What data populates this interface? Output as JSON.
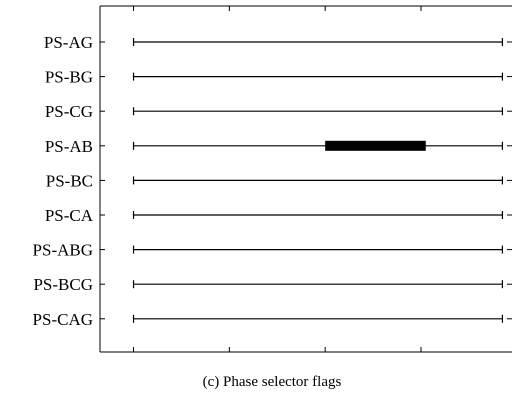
{
  "chart_data": {
    "type": "timeline",
    "title": "",
    "xlabel": "",
    "ylabel": "",
    "categories": [
      "PS-AG",
      "PS-BG",
      "PS-CG",
      "PS-AB",
      "PS-BC",
      "PS-CA",
      "PS-ABG",
      "PS-BCG",
      "PS-CAG"
    ],
    "xlim": [
      0,
      4.3
    ],
    "x_ticks": [
      0.35,
      1.35,
      2.35,
      3.35,
      4.35
    ],
    "baseline": [
      0.35,
      4.2
    ],
    "active_intervals": [
      {
        "category": "PS-AB",
        "start": 2.35,
        "end": 3.4
      }
    ],
    "grid": false,
    "legend": "none"
  },
  "caption": "(c) Phase selector flags",
  "colors": {
    "line": "#000000",
    "flag": "#000000",
    "background": "#ffffff"
  }
}
